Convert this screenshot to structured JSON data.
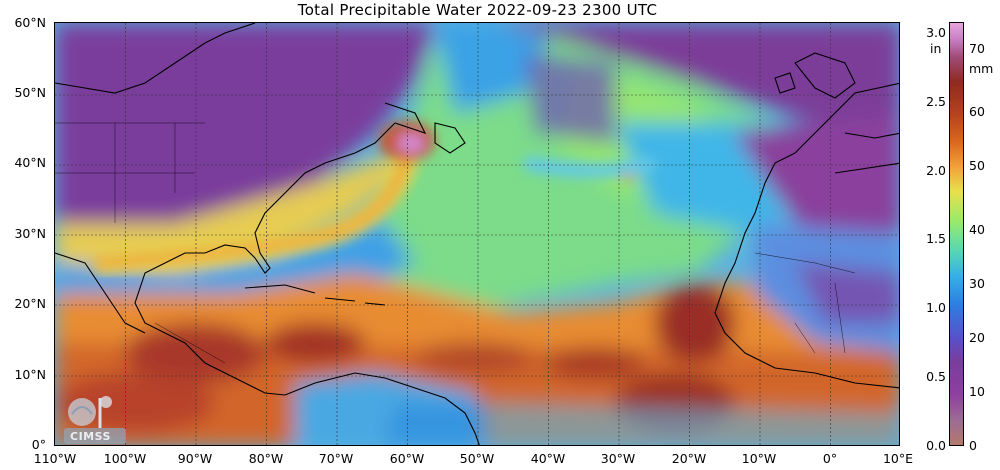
{
  "title": "Total Precipitable Water  2022-09-23 2300 UTC",
  "lat_labels": [
    "60°N",
    "50°N",
    "40°N",
    "30°N",
    "20°N",
    "10°N",
    "0°"
  ],
  "lon_labels": [
    "110°W",
    "100°W",
    "90°W",
    "80°W",
    "70°W",
    "60°W",
    "50°W",
    "40°W",
    "30°W",
    "20°W",
    "10°W",
    "0°",
    "10°E"
  ],
  "colorbar": {
    "unit_in": "in",
    "unit_mm": "mm",
    "inch_ticks": [
      "0.0",
      "0.5",
      "1.0",
      "1.5",
      "2.0",
      "2.5",
      "3.0"
    ],
    "mm_ticks": [
      "0",
      "10",
      "20",
      "30",
      "40",
      "50",
      "60",
      "70"
    ]
  },
  "logo_text": "CIMSS",
  "colors": {
    "dry_purple": "#7e3a98",
    "moist_cyan": "#40c0e8",
    "mid_green": "#8ee36a",
    "wet_orange": "#e0782a",
    "very_wet_brown": "#9a3322",
    "ocean_base": "#52b4e4"
  }
}
